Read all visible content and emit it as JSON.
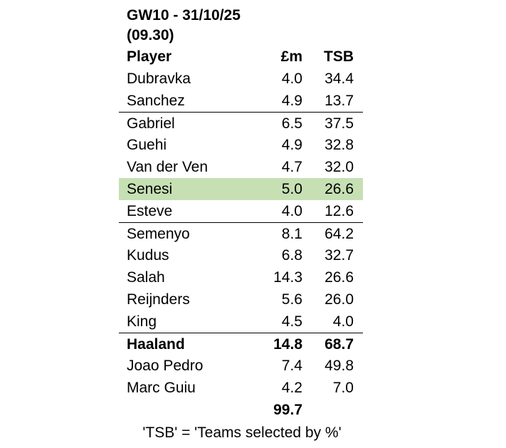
{
  "title": [
    "GW10 - 31/10/25",
    "(09.30)"
  ],
  "table": {
    "header": [
      "Player",
      "£m",
      "TSB"
    ],
    "groups": [
      [
        {
          "cells": [
            "Dubravka",
            "4.0",
            "34.4"
          ]
        },
        {
          "cells": [
            "Sanchez",
            "4.9",
            "13.7"
          ]
        }
      ],
      [
        {
          "cells": [
            "Gabriel",
            "6.5",
            "37.5"
          ]
        },
        {
          "cells": [
            "Guehi",
            "4.9",
            "32.8"
          ]
        },
        {
          "cells": [
            "Van der Ven",
            "4.7",
            "32.0"
          ]
        },
        {
          "cells": [
            "Senesi",
            "5.0",
            "26.6"
          ],
          "highlighted": true
        },
        {
          "cells": [
            "Esteve",
            "4.0",
            "12.6"
          ]
        }
      ],
      [
        {
          "cells": [
            "Semenyo",
            "8.1",
            "64.2"
          ]
        },
        {
          "cells": [
            "Kudus",
            "6.8",
            "32.7"
          ]
        },
        {
          "cells": [
            "Salah",
            "14.3",
            "26.6"
          ]
        },
        {
          "cells": [
            "Reijnders",
            "5.6",
            "26.0"
          ]
        },
        {
          "cells": [
            "King",
            "4.5",
            "4.0"
          ]
        }
      ],
      [
        {
          "cells": [
            "Haaland",
            "14.8",
            "68.7"
          ],
          "bold": true
        },
        {
          "cells": [
            "Joao Pedro",
            "7.4",
            "49.8"
          ]
        },
        {
          "cells": [
            "Marc Guiu",
            "4.2",
            "7.0"
          ]
        }
      ]
    ],
    "total": "99.7"
  },
  "footnote": "'TSB' = 'Teams selected by %'"
}
